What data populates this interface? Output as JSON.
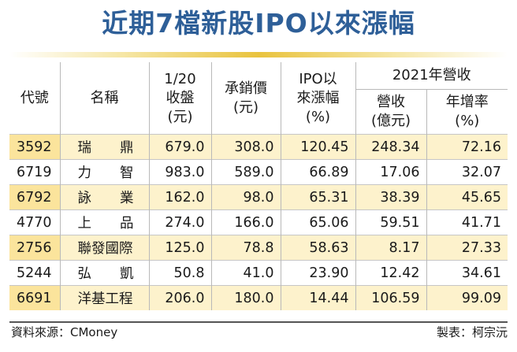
{
  "title": "近期7檔新股IPO以來漲幅",
  "header": {
    "code": "代號",
    "name": "名稱",
    "close_line1": "1/20",
    "close_line2": "收盤",
    "close_line3": "(元)",
    "price_line1": "承銷價",
    "price_line2": "(元)",
    "ipo_line1": "IPO以",
    "ipo_line2": "來漲幅",
    "ipo_line3": "(%)",
    "revenue_group": "2021年營收",
    "rev_line1": "營收",
    "rev_line2": "(億元)",
    "growth_line1": "年增率",
    "growth_line2": "(%)"
  },
  "rows": [
    {
      "code": "3592",
      "name_parts": [
        "瑞",
        "鼎"
      ],
      "close": "679.0",
      "price": "308.0",
      "ipo": "120.45",
      "revenue": "248.34",
      "growth": "72.16",
      "highlight": true
    },
    {
      "code": "6719",
      "name_parts": [
        "力",
        "智"
      ],
      "close": "983.0",
      "price": "589.0",
      "ipo": "66.89",
      "revenue": "17.06",
      "growth": "32.07",
      "highlight": false
    },
    {
      "code": "6792",
      "name_parts": [
        "詠",
        "業"
      ],
      "close": "162.0",
      "price": "98.0",
      "ipo": "65.31",
      "revenue": "38.39",
      "growth": "45.65",
      "highlight": true
    },
    {
      "code": "4770",
      "name_parts": [
        "上",
        "品"
      ],
      "close": "274.0",
      "price": "166.0",
      "ipo": "65.06",
      "revenue": "59.51",
      "growth": "41.71",
      "highlight": false
    },
    {
      "code": "2756",
      "name_parts": [
        "聯發國際"
      ],
      "close": "125.0",
      "price": "78.8",
      "ipo": "58.63",
      "revenue": "8.17",
      "growth": "27.33",
      "highlight": true
    },
    {
      "code": "5244",
      "name_parts": [
        "弘",
        "凱"
      ],
      "close": "50.8",
      "price": "41.0",
      "ipo": "23.90",
      "revenue": "12.42",
      "growth": "34.61",
      "highlight": false
    },
    {
      "code": "6691",
      "name_parts": [
        "洋基工程"
      ],
      "close": "206.0",
      "price": "180.0",
      "ipo": "14.44",
      "revenue": "106.59",
      "growth": "99.09",
      "highlight": true
    }
  ],
  "footer": {
    "source": "資料來源：CMoney",
    "maker": "製表：柯宗沅"
  }
}
